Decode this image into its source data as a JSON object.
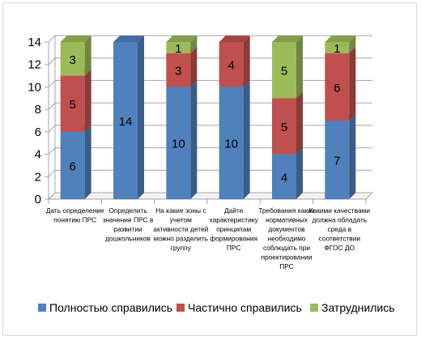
{
  "chart_data": {
    "type": "bar",
    "stacked": true,
    "style": "3d",
    "ylim": [
      0,
      14
    ],
    "y_ticks": [
      0,
      2,
      4,
      6,
      8,
      10,
      12,
      14
    ],
    "grid": true,
    "legend_position": "bottom",
    "categories": [
      [
        "Дать определение",
        "понятию ПРС"
      ],
      [
        "Определить",
        "значение ПРС в",
        "развитии",
        "дошкольников"
      ],
      [
        "На какие зоны с",
        "учетом",
        "активности детей",
        "можно разделить",
        "группу"
      ],
      [
        "Дайте",
        "характеристику",
        "принципам",
        "формирования",
        "ПРС"
      ],
      [
        "Требования каких",
        "нормативных",
        "документов",
        "необходимо",
        "соблюдать при",
        "проектировании",
        "ПРС"
      ],
      [
        "Какими качествами",
        "должна обладать",
        "среда в",
        "соответствии",
        "ФГОС ДО"
      ]
    ],
    "series": [
      {
        "name": "Полностью справились",
        "color": "#4f81bd",
        "values": [
          6,
          14,
          10,
          10,
          4,
          7
        ]
      },
      {
        "name": "Частично справились",
        "color": "#c0504d",
        "values": [
          5,
          null,
          3,
          4,
          5,
          6
        ]
      },
      {
        "name": "Затруднились",
        "color": "#9bbb59",
        "values": [
          3,
          null,
          1,
          null,
          5,
          1
        ]
      }
    ]
  }
}
